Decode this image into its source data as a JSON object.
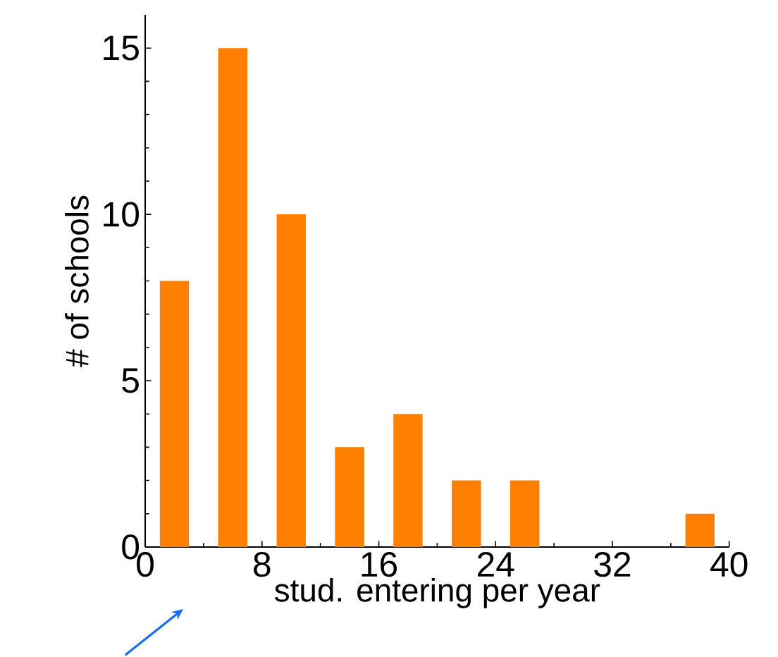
{
  "chart_data": {
    "type": "histogram",
    "xlabel": "stud. entering per year",
    "ylabel": "# of schools",
    "bins": [
      0,
      4,
      8,
      12,
      16,
      20,
      24,
      28,
      32,
      36,
      40
    ],
    "values": [
      8,
      15,
      10,
      3,
      4,
      2,
      2,
      0,
      0,
      1
    ],
    "color": "#ff8000",
    "xlim": [
      0,
      40
    ],
    "ylim": [
      0,
      16
    ],
    "xticks": [
      0,
      8,
      16,
      24,
      32,
      40
    ],
    "yticks": [
      0,
      5,
      10,
      15
    ],
    "grid": false
  }
}
